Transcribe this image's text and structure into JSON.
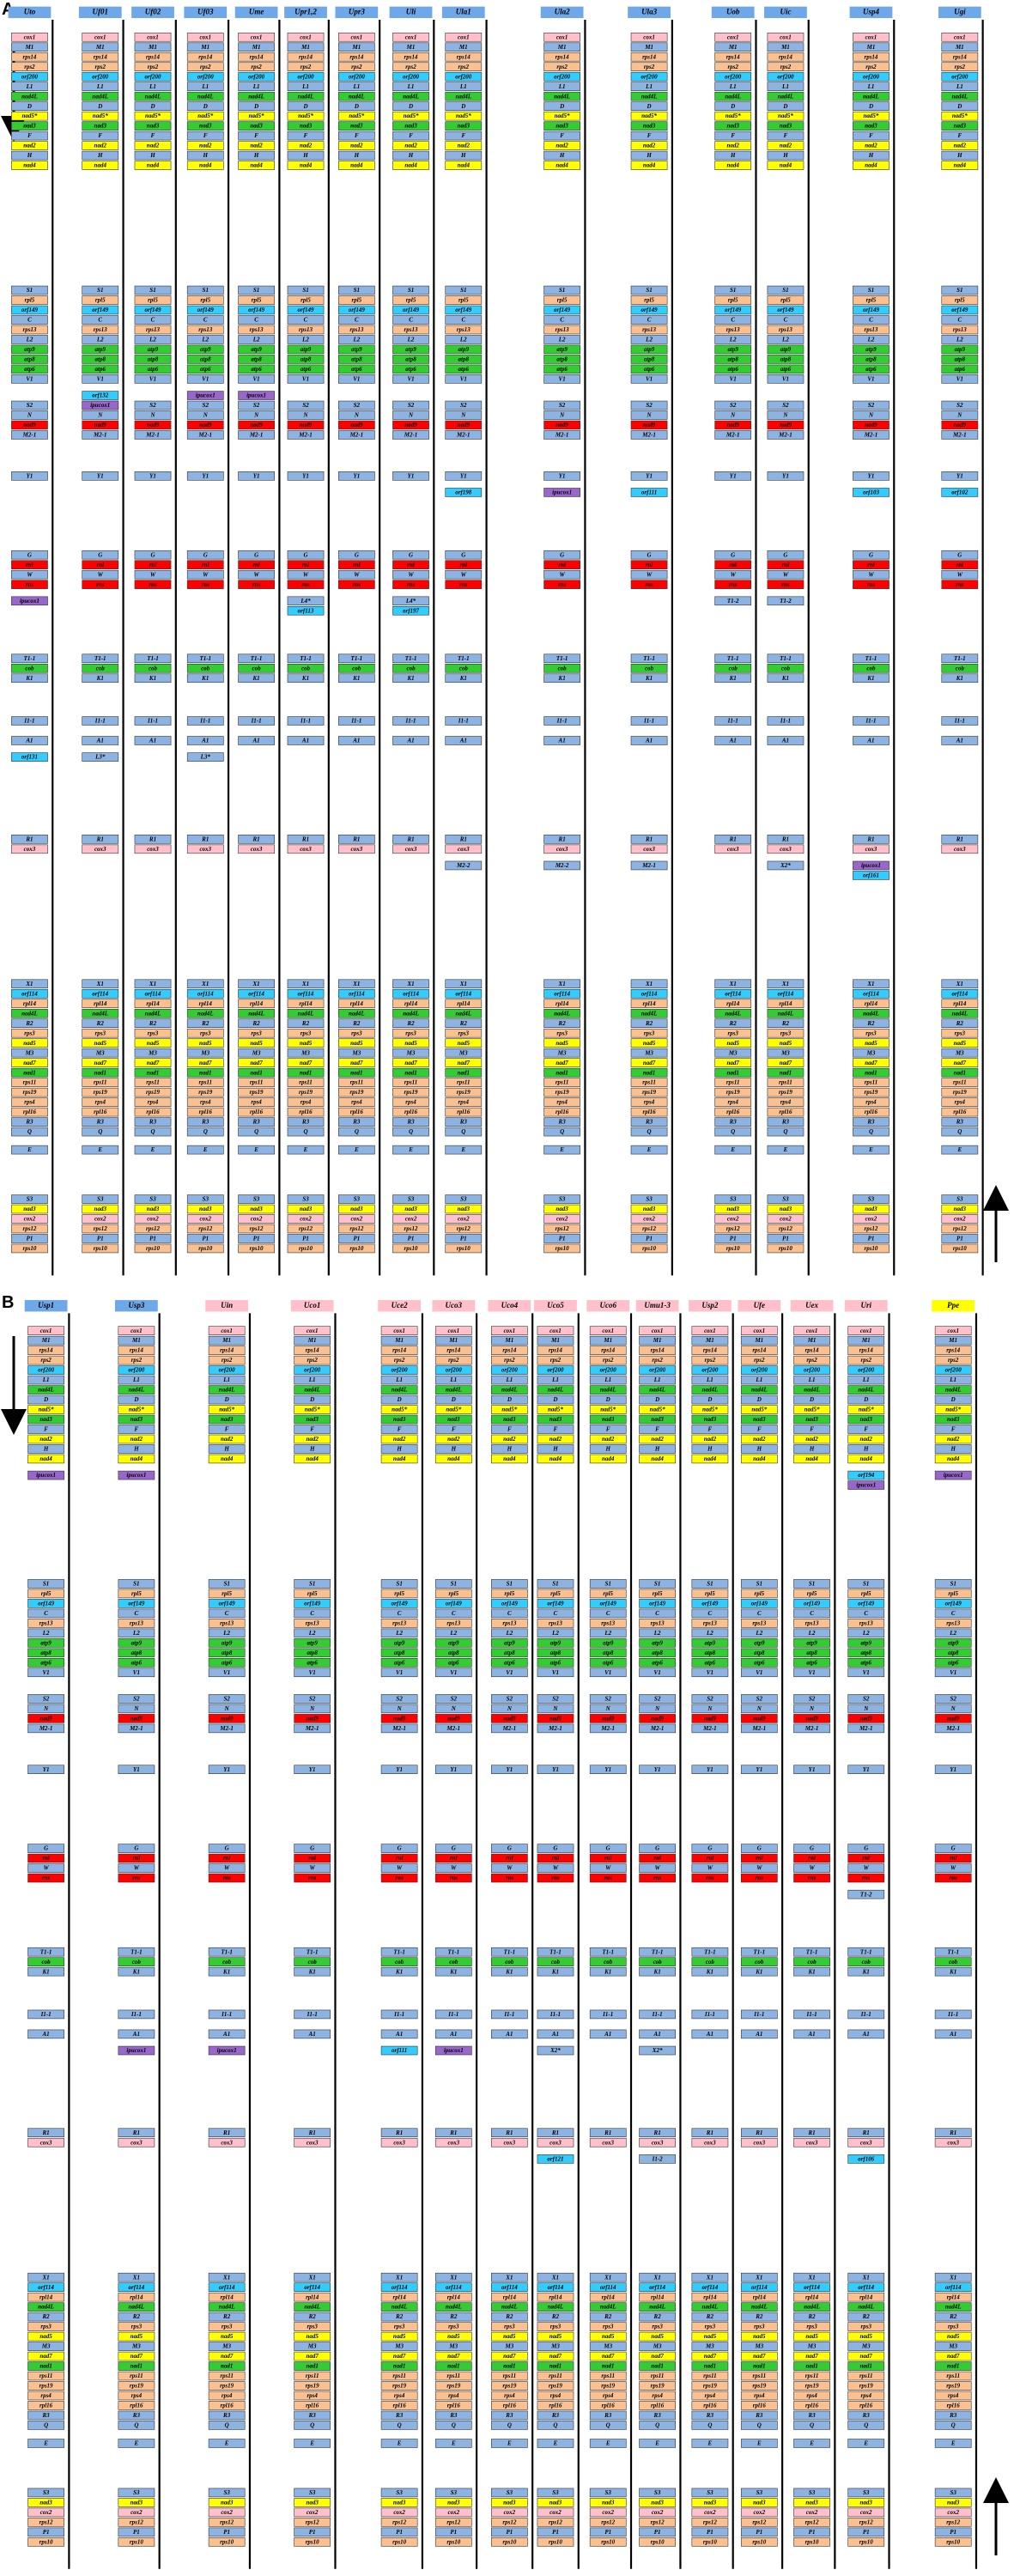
{
  "colors": {
    "blue": "#8db3e2",
    "peach": "#fac090",
    "cyan": "#33ccff",
    "green": "#33cc33",
    "yellow": "#ffff00",
    "red": "#ff0000",
    "pink": "#ffc0cb",
    "purple": "#9966cc",
    "gold": "#ffff00"
  },
  "gene_clusters": [
    [
      {
        "label": "cox1",
        "c": "pink"
      },
      {
        "label": "M1",
        "c": "blue"
      },
      {
        "label": "rps14",
        "c": "peach"
      },
      {
        "label": "rps2",
        "c": "peach"
      },
      {
        "label": "orf200",
        "c": "cyan"
      },
      {
        "label": "L1",
        "c": "blue"
      },
      {
        "label": "nad4L",
        "c": "green"
      },
      {
        "label": "D",
        "c": "blue"
      },
      {
        "label": "nad5*",
        "c": "yellow"
      },
      {
        "label": "nad3",
        "c": "green"
      },
      {
        "label": "F",
        "c": "blue"
      },
      {
        "label": "nad2",
        "c": "yellow"
      },
      {
        "label": "H",
        "c": "blue"
      },
      {
        "label": "nad4",
        "c": "yellow"
      }
    ],
    [
      {
        "label": "S1",
        "c": "blue"
      },
      {
        "label": "rpl5",
        "c": "peach"
      },
      {
        "label": "orf149",
        "c": "cyan"
      },
      {
        "label": "C",
        "c": "blue"
      },
      {
        "label": "rps13",
        "c": "peach"
      },
      {
        "label": "L2",
        "c": "blue"
      },
      {
        "label": "atp9",
        "c": "green"
      },
      {
        "label": "atp8",
        "c": "green"
      },
      {
        "label": "atp6",
        "c": "green"
      },
      {
        "label": "V1",
        "c": "blue"
      }
    ],
    [
      {
        "label": "S2",
        "c": "blue"
      },
      {
        "label": "N",
        "c": "blue"
      },
      {
        "label": "nad9",
        "c": "red"
      },
      {
        "label": "M2-1",
        "c": "blue"
      }
    ],
    [
      {
        "label": "Y1",
        "c": "blue"
      }
    ],
    [
      {
        "label": "G",
        "c": "blue"
      },
      {
        "label": "rnl",
        "c": "red"
      },
      {
        "label": "W",
        "c": "blue"
      },
      {
        "label": "rns",
        "c": "red"
      }
    ],
    [
      {
        "label": "T1-1",
        "c": "blue"
      },
      {
        "label": "cob",
        "c": "green"
      },
      {
        "label": "K1",
        "c": "blue"
      }
    ],
    [
      {
        "label": "I1-1",
        "c": "blue"
      }
    ],
    [
      {
        "label": "A1",
        "c": "blue"
      }
    ],
    [
      {
        "label": "R1",
        "c": "blue"
      },
      {
        "label": "cox3",
        "c": "pink"
      }
    ],
    [
      {
        "label": "X1",
        "c": "blue"
      },
      {
        "label": "orf114",
        "c": "cyan"
      },
      {
        "label": "rpl14",
        "c": "peach"
      },
      {
        "label": "nad4L",
        "c": "green"
      },
      {
        "label": "R2",
        "c": "blue"
      },
      {
        "label": "rps3",
        "c": "peach"
      },
      {
        "label": "nad5",
        "c": "yellow"
      },
      {
        "label": "M3",
        "c": "blue"
      },
      {
        "label": "nad7",
        "c": "yellow"
      },
      {
        "label": "nad1",
        "c": "green"
      },
      {
        "label": "rps11",
        "c": "peach"
      },
      {
        "label": "rps19",
        "c": "peach"
      },
      {
        "label": "rps4",
        "c": "peach"
      },
      {
        "label": "rpl16",
        "c": "peach"
      },
      {
        "label": "R3",
        "c": "blue"
      },
      {
        "label": "Q",
        "c": "blue"
      }
    ],
    [
      {
        "label": "E",
        "c": "blue"
      }
    ],
    [
      {
        "label": "S3",
        "c": "blue"
      },
      {
        "label": "nad3",
        "c": "yellow"
      },
      {
        "label": "cox2",
        "c": "pink"
      },
      {
        "label": "rps12",
        "c": "peach"
      },
      {
        "label": "P1",
        "c": "blue"
      },
      {
        "label": "rps10",
        "c": "peach"
      }
    ]
  ],
  "panels": [
    {
      "label": "A",
      "columns": [
        {
          "name": "Uto",
          "c": "blue",
          "extras": [
            {
              "label": "ipucox1",
              "c": "purple",
              "after": 4
            },
            {
              "label": "orf131",
              "c": "cyan",
              "after": 7
            }
          ]
        },
        {
          "name": "Uf01",
          "c": "blue",
          "extras": [
            {
              "label": "orf132",
              "c": "cyan",
              "after": 1
            },
            {
              "label": "ipucox1",
              "c": "purple",
              "after": 1
            },
            {
              "label": "L3*",
              "c": "blue",
              "after": 7
            }
          ]
        },
        {
          "name": "Uf02",
          "c": "blue",
          "extras": []
        },
        {
          "name": "Uf03",
          "c": "blue",
          "extras": [
            {
              "label": "ipucox1",
              "c": "purple",
              "after": 1
            },
            {
              "label": "L3*",
              "c": "blue",
              "after": 7
            }
          ]
        },
        {
          "name": "Ume",
          "c": "blue",
          "extras": [
            {
              "label": "ipucox1",
              "c": "purple",
              "after": 1
            }
          ]
        },
        {
          "name": "Upr1,2",
          "c": "blue",
          "extras": [
            {
              "label": "L4*",
              "c": "blue",
              "after": 4
            },
            {
              "label": "orf113",
              "c": "cyan",
              "after": 4
            }
          ]
        },
        {
          "name": "Upr3",
          "c": "blue",
          "extras": []
        },
        {
          "name": "Uli",
          "c": "blue",
          "extras": [
            {
              "label": "L4*",
              "c": "blue",
              "after": 4
            },
            {
              "label": "orf197",
              "c": "cyan",
              "after": 4
            }
          ]
        },
        {
          "name": "Ula1",
          "c": "blue",
          "extras": [
            {
              "label": "orf198",
              "c": "cyan",
              "after": 3
            },
            {
              "label": "M2-2",
              "c": "blue",
              "after": 8
            }
          ]
        },
        {
          "name": "Ula2",
          "c": "blue",
          "extras": [
            {
              "label": "ipucox1",
              "c": "purple",
              "after": 3
            },
            {
              "label": "M2-2",
              "c": "blue",
              "after": 8
            }
          ]
        },
        {
          "name": "Ula3",
          "c": "blue",
          "extras": [
            {
              "label": "orf111",
              "c": "cyan",
              "after": 3
            },
            {
              "label": "M2-1",
              "c": "blue",
              "after": 8
            }
          ]
        },
        {
          "name": "Uob",
          "c": "blue",
          "extras": [
            {
              "label": "T1-2",
              "c": "blue",
              "after": 4
            }
          ]
        },
        {
          "name": "Uic",
          "c": "blue",
          "extras": [
            {
              "label": "T1-2",
              "c": "blue",
              "after": 4
            },
            {
              "label": "X2*",
              "c": "blue",
              "after": 8
            }
          ]
        },
        {
          "name": "Usp4",
          "c": "blue",
          "extras": [
            {
              "label": "orf103",
              "c": "cyan",
              "after": 3
            },
            {
              "label": "ipucox1",
              "c": "purple",
              "after": 8
            },
            {
              "label": "orf161",
              "c": "cyan",
              "after": 8
            }
          ]
        },
        {
          "name": "Ugi",
          "c": "blue",
          "extras": [
            {
              "label": "orf102",
              "c": "cyan",
              "after": 3
            }
          ]
        }
      ]
    },
    {
      "label": "B",
      "columns": [
        {
          "name": "Usp1",
          "c": "blue",
          "extras": [
            {
              "label": "ipucox1",
              "c": "purple",
              "after": 0
            }
          ]
        },
        {
          "name": "Usp3",
          "c": "blue",
          "extras": [
            {
              "label": "ipucox1",
              "c": "purple",
              "after": 0
            },
            {
              "label": "ipucox1",
              "c": "purple",
              "after": 7
            }
          ]
        },
        {
          "name": "Uin",
          "c": "pink",
          "extras": [
            {
              "label": "ipucox1",
              "c": "purple",
              "after": 7
            }
          ]
        },
        {
          "name": "Uco1",
          "c": "pink",
          "extras": []
        },
        {
          "name": "Uce2",
          "c": "pink",
          "extras": [
            {
              "label": "orf111",
              "c": "cyan",
              "after": 7
            }
          ]
        },
        {
          "name": "Uco3",
          "c": "pink",
          "extras": [
            {
              "label": "ipucox1",
              "c": "purple",
              "after": 7
            }
          ]
        },
        {
          "name": "Uco4",
          "c": "pink",
          "extras": []
        },
        {
          "name": "Uco5",
          "c": "pink",
          "extras": [
            {
              "label": "X2*",
              "c": "blue",
              "after": 7
            },
            {
              "label": "orf121",
              "c": "cyan",
              "after": 8
            }
          ]
        },
        {
          "name": "Uco6",
          "c": "pink",
          "extras": []
        },
        {
          "name": "Umu1-3",
          "c": "pink",
          "extras": [
            {
              "label": "X2*",
              "c": "blue",
              "after": 7
            },
            {
              "label": "I1-2",
              "c": "blue",
              "after": 8
            }
          ]
        },
        {
          "name": "Usp2",
          "c": "pink",
          "extras": []
        },
        {
          "name": "Ufe",
          "c": "pink",
          "extras": []
        },
        {
          "name": "Uex",
          "c": "pink",
          "extras": []
        },
        {
          "name": "Uri",
          "c": "pink",
          "extras": [
            {
              "label": "orf194",
              "c": "cyan",
              "after": 0
            },
            {
              "label": "ipucox1",
              "c": "purple",
              "after": 0
            },
            {
              "label": "T1-2",
              "c": "blue",
              "after": 4
            },
            {
              "label": "orf106",
              "c": "cyan",
              "after": 8
            }
          ]
        },
        {
          "name": "Ppe",
          "c": "gold",
          "extras": [
            {
              "label": "ipucox1",
              "c": "purple",
              "after": 0
            }
          ]
        }
      ]
    }
  ]
}
